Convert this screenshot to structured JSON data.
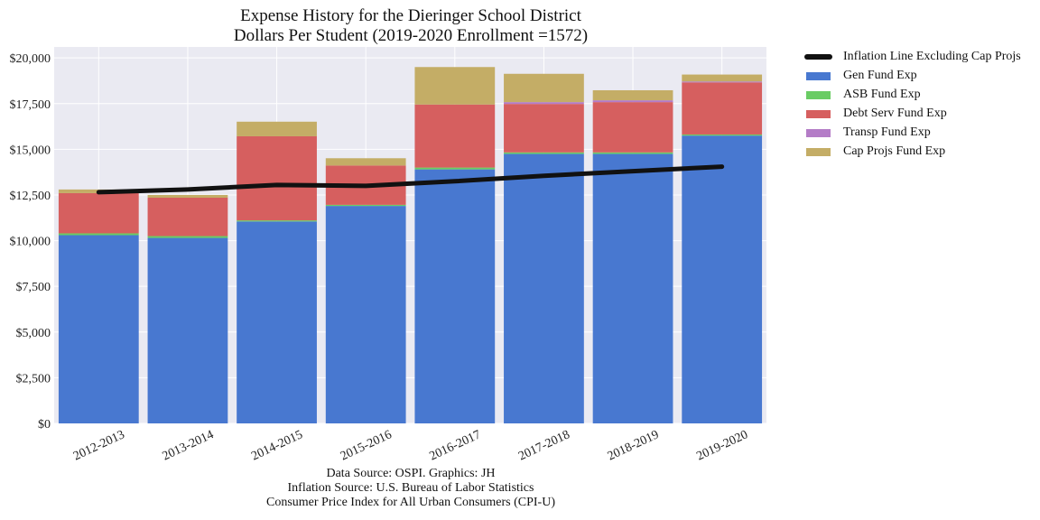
{
  "chart_data": {
    "type": "bar",
    "stacked": true,
    "title": "Expense History for the Dieringer School District",
    "subtitle": "Dollars Per Student (2019-2020 Enrollment =1572)",
    "categories": [
      "2012-2013",
      "2013-2014",
      "2014-2015",
      "2015-2016",
      "2016-2017",
      "2017-2018",
      "2018-2019",
      "2019-2020"
    ],
    "ylim": [
      0,
      20600
    ],
    "yticks": [
      0,
      2500,
      5000,
      7500,
      10000,
      12500,
      15000,
      17500,
      20000
    ],
    "ytick_labels": [
      "$0",
      "$2,500",
      "$5,000",
      "$7,500",
      "$10,000",
      "$12,500",
      "$15,000",
      "$17,500",
      "$20,000"
    ],
    "grid": true,
    "legend_position": "outside-right",
    "series": [
      {
        "name": "Gen Fund Exp",
        "color": "#4878d0",
        "values": [
          10300,
          10150,
          11050,
          11900,
          13900,
          14750,
          14750,
          15750
        ]
      },
      {
        "name": "ASB Fund Exp",
        "color": "#6acc64",
        "values": [
          100,
          100,
          60,
          60,
          100,
          80,
          80,
          60
        ]
      },
      {
        "name": "Debt Serv Fund Exp",
        "color": "#d65f5f",
        "values": [
          2200,
          2100,
          4600,
          2150,
          3450,
          2650,
          2750,
          2850
        ]
      },
      {
        "name": "Transp Fund Exp",
        "color": "#b47cc7",
        "values": [
          0,
          0,
          0,
          0,
          0,
          100,
          100,
          50
        ]
      },
      {
        "name": "Cap Projs Fund Exp",
        "color": "#c4ad66",
        "values": [
          200,
          150,
          800,
          400,
          2050,
          1550,
          550,
          380
        ]
      }
    ],
    "line": {
      "name": "Inflation Line Excluding Cap Projs",
      "color": "#111111",
      "values": [
        12650,
        12800,
        13050,
        13000,
        13250,
        13550,
        13800,
        14050
      ]
    }
  },
  "source_lines": [
    "Data Source: OSPI. Graphics: JH",
    "Inflation Source: U.S. Bureau of Labor Statistics",
    "Consumer Price Index for All Urban Consumers (CPI-U)"
  ]
}
